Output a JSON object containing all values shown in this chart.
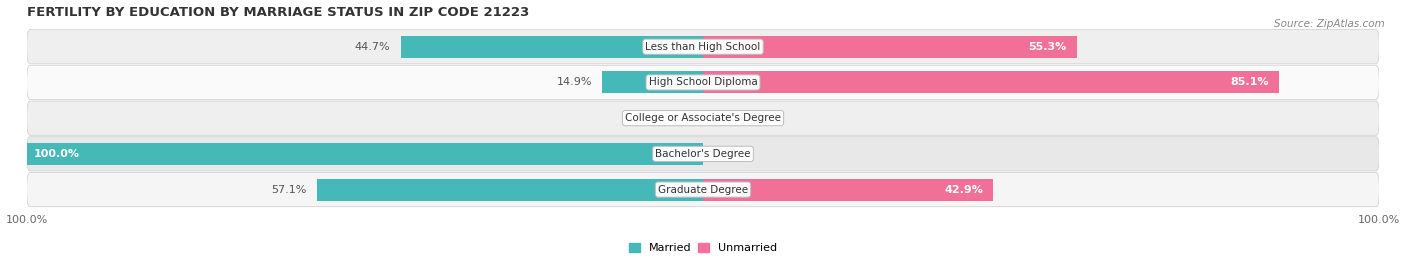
{
  "title": "FERTILITY BY EDUCATION BY MARRIAGE STATUS IN ZIP CODE 21223",
  "source": "Source: ZipAtlas.com",
  "categories": [
    "Less than High School",
    "High School Diploma",
    "College or Associate's Degree",
    "Bachelor's Degree",
    "Graduate Degree"
  ],
  "married": [
    44.7,
    14.9,
    0.0,
    100.0,
    57.1
  ],
  "unmarried": [
    55.3,
    85.1,
    0.0,
    0.0,
    42.9
  ],
  "married_color": "#45b8b8",
  "unmarried_color": "#f07098",
  "title_fontsize": 9.5,
  "label_fontsize": 8.0,
  "tick_fontsize": 8,
  "bar_height": 0.62,
  "figsize": [
    14.06,
    2.69
  ],
  "dpi": 100,
  "row_colors": [
    "#f0f0f0",
    "#f0f0f0",
    "#f0f0f0",
    "#f0f0f0",
    "#f0f0f0"
  ],
  "row_alt_colors": [
    "#f7f7f7",
    "#ececec",
    "#f7f7f7",
    "#e8e8e8",
    "#f7f7f7"
  ]
}
